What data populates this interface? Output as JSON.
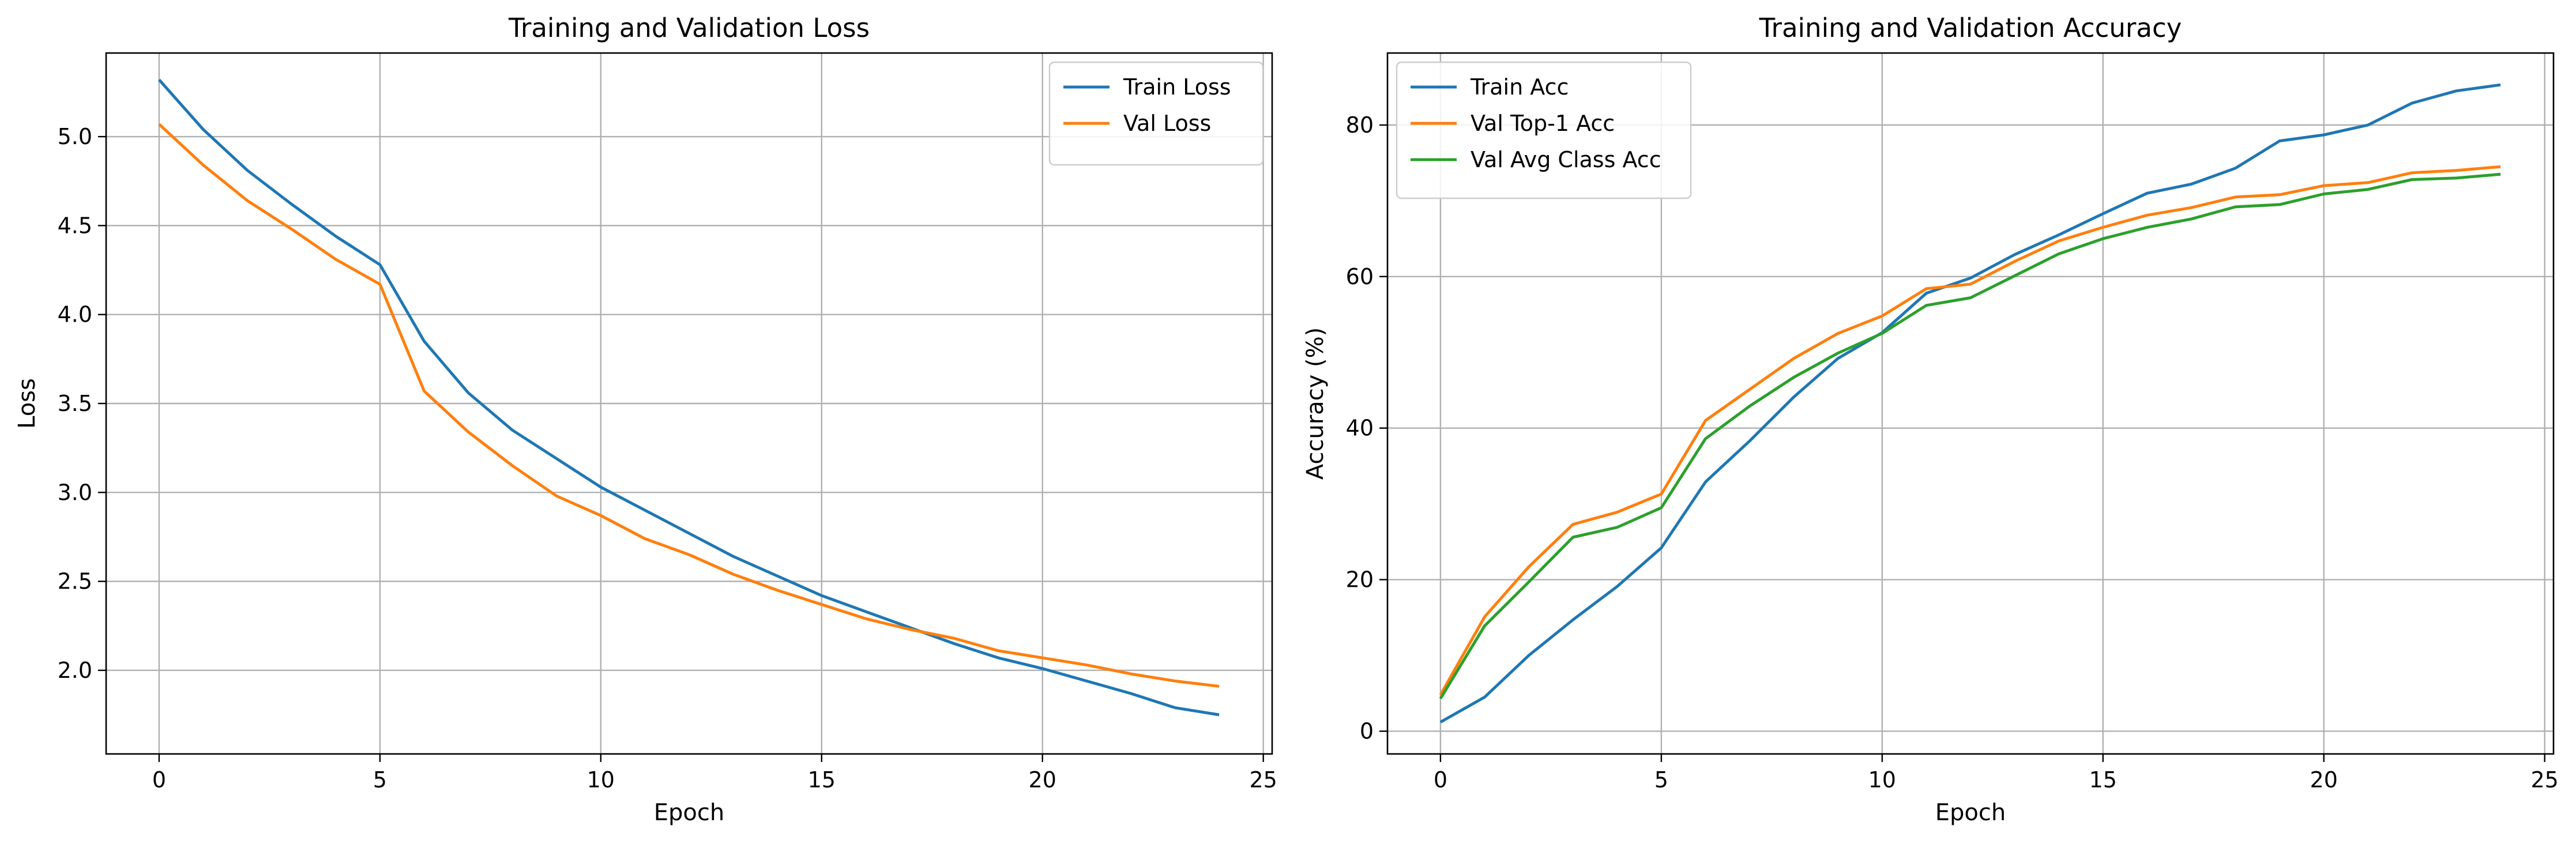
{
  "chart_data": [
    {
      "type": "line",
      "title": "Training and Validation Loss",
      "xlabel": "Epoch",
      "ylabel": "Loss",
      "xlim": [
        -1.2,
        25.2
      ],
      "ylim": [
        1.53,
        5.47
      ],
      "xticks": [
        0,
        5,
        10,
        15,
        20,
        25
      ],
      "yticks": [
        2.0,
        2.5,
        3.0,
        3.5,
        4.0,
        4.5,
        5.0
      ],
      "ytick_labels": [
        "2.0",
        "2.5",
        "3.0",
        "3.5",
        "4.0",
        "4.5",
        "5.0"
      ],
      "grid": true,
      "legend_position": "top-right",
      "x": [
        0,
        1,
        2,
        3,
        4,
        5,
        6,
        7,
        8,
        9,
        10,
        11,
        12,
        13,
        14,
        15,
        16,
        17,
        18,
        19,
        20,
        21,
        22,
        23,
        24
      ],
      "series": [
        {
          "name": "Train Loss",
          "color": "#1f77b4",
          "values": [
            5.32,
            5.04,
            4.81,
            4.62,
            4.44,
            4.28,
            3.85,
            3.56,
            3.35,
            3.19,
            3.03,
            2.9,
            2.77,
            2.64,
            2.53,
            2.42,
            2.33,
            2.24,
            2.15,
            2.07,
            2.01,
            1.94,
            1.87,
            1.79,
            1.75
          ]
        },
        {
          "name": "Val Loss",
          "color": "#ff7f0e",
          "values": [
            5.07,
            4.84,
            4.64,
            4.48,
            4.31,
            4.17,
            3.57,
            3.34,
            3.15,
            2.98,
            2.87,
            2.74,
            2.65,
            2.54,
            2.45,
            2.37,
            2.29,
            2.23,
            2.18,
            2.11,
            2.07,
            2.03,
            1.98,
            1.94,
            1.91
          ]
        }
      ]
    },
    {
      "type": "line",
      "title": "Training and Validation Accuracy",
      "xlabel": "Epoch",
      "ylabel": "Accuracy (%)",
      "xlim": [
        -1.2,
        25.2
      ],
      "ylim": [
        -3.0,
        89.5
      ],
      "xticks": [
        0,
        5,
        10,
        15,
        20,
        25
      ],
      "yticks": [
        0,
        20,
        40,
        60,
        80
      ],
      "ytick_labels": [
        "0",
        "20",
        "40",
        "60",
        "80"
      ],
      "grid": true,
      "legend_position": "top-left",
      "x": [
        0,
        1,
        2,
        3,
        4,
        5,
        6,
        7,
        8,
        9,
        10,
        11,
        12,
        13,
        14,
        15,
        16,
        17,
        18,
        19,
        20,
        21,
        22,
        23,
        24
      ],
      "series": [
        {
          "name": "Train Acc",
          "color": "#1f77b4",
          "values": [
            1.2,
            4.5,
            10.0,
            14.7,
            19.1,
            24.2,
            32.9,
            38.3,
            44.1,
            49.2,
            52.6,
            57.8,
            59.8,
            62.9,
            65.5,
            68.3,
            71.0,
            72.2,
            74.3,
            77.9,
            78.7,
            80.0,
            82.9,
            84.5,
            85.3
          ]
        },
        {
          "name": "Val Top-1 Acc",
          "color": "#ff7f0e",
          "values": [
            4.8,
            15.1,
            21.7,
            27.3,
            28.9,
            31.3,
            41.0,
            45.1,
            49.2,
            52.5,
            54.8,
            58.4,
            59.0,
            62.0,
            64.7,
            66.5,
            68.1,
            69.1,
            70.5,
            70.8,
            72.0,
            72.4,
            73.7,
            74.0,
            74.5
          ]
        },
        {
          "name": "Val Avg Class Acc",
          "color": "#2ca02c",
          "values": [
            4.3,
            13.9,
            19.7,
            25.6,
            26.9,
            29.5,
            38.6,
            42.9,
            46.7,
            49.9,
            52.5,
            56.2,
            57.2,
            60.1,
            63.0,
            65.0,
            66.5,
            67.6,
            69.2,
            69.5,
            70.9,
            71.5,
            72.8,
            73.0,
            73.5
          ]
        }
      ]
    }
  ]
}
